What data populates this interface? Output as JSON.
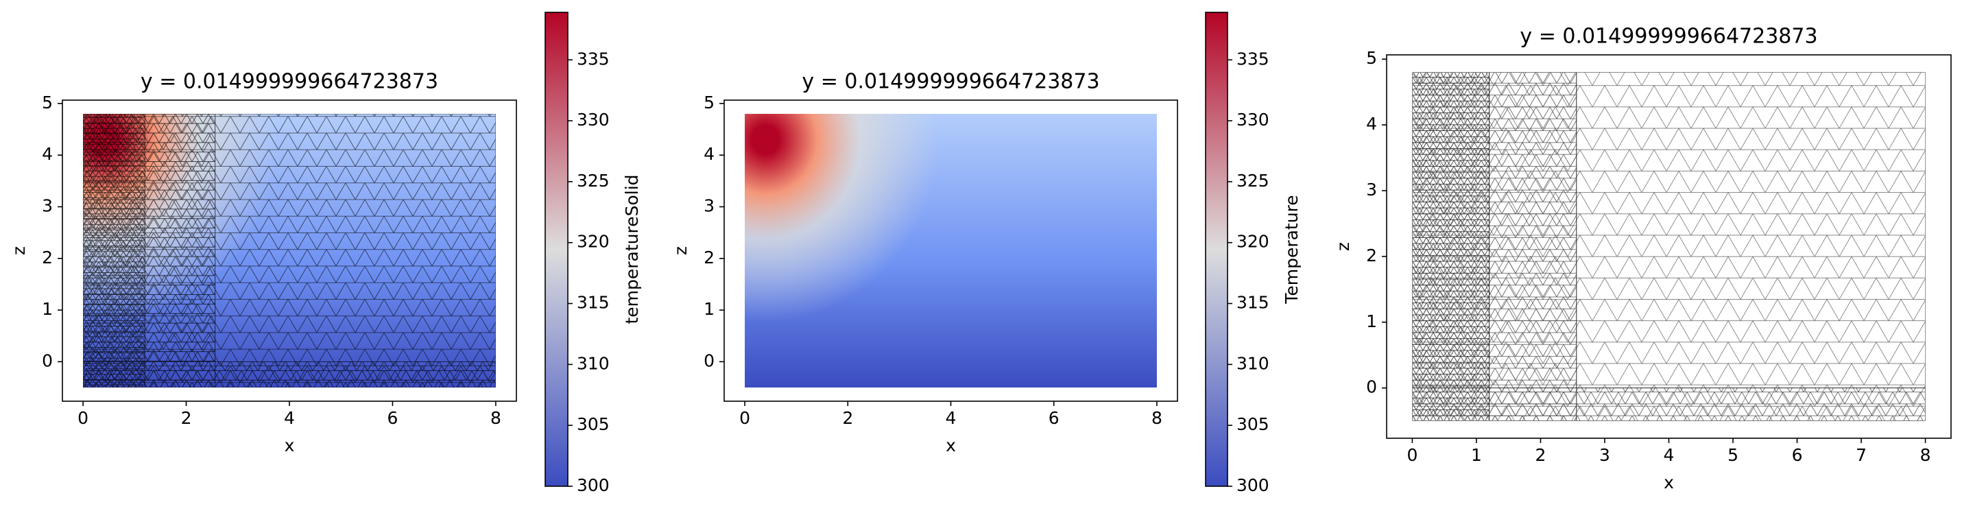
{
  "chart_data": [
    {
      "type": "tripcolor",
      "title": "y = 0.014999999664723873",
      "xlabel": "x",
      "ylabel": "z",
      "xlim": [
        -0.4,
        8.4
      ],
      "ylim": [
        -0.765,
        5.065
      ],
      "xticks": [
        0,
        2,
        4,
        6,
        8
      ],
      "yticks": [
        0,
        1,
        2,
        3,
        4,
        5
      ],
      "x_extent": [
        0,
        8
      ],
      "z_extent": [
        -0.5,
        4.8
      ],
      "mesh": true,
      "colormap": [
        "#3b4cc0",
        "#dddddd",
        "#b40426"
      ],
      "colorbar": {
        "label": "temperatureSolid",
        "clim": [
          300,
          338.9
        ],
        "ticks": [
          300,
          305,
          310,
          315,
          320,
          325,
          330,
          335
        ]
      }
    },
    {
      "type": "tripcolor",
      "title": "y = 0.014999999664723873",
      "xlabel": "x",
      "ylabel": "z",
      "xlim": [
        -0.4,
        8.4
      ],
      "ylim": [
        -0.765,
        5.065
      ],
      "xticks": [
        0,
        2,
        4,
        6,
        8
      ],
      "yticks": [
        0,
        1,
        2,
        3,
        4,
        5
      ],
      "x_extent": [
        0,
        8
      ],
      "z_extent": [
        -0.5,
        4.8
      ],
      "mesh": false,
      "colormap": [
        "#3b4cc0",
        "#dddddd",
        "#b40426"
      ],
      "colorbar": {
        "label": "Temperature",
        "clim": [
          300,
          338.9
        ],
        "ticks": [
          300,
          305,
          310,
          315,
          320,
          325,
          330,
          335
        ]
      }
    },
    {
      "type": "triplot",
      "title": "y = 0.014999999664723873",
      "xlabel": "x",
      "ylabel": "z",
      "xlim": [
        -0.4,
        8.4
      ],
      "ylim": [
        -0.765,
        5.065
      ],
      "xticks": [
        0,
        1,
        2,
        3,
        4,
        5,
        6,
        7,
        8
      ],
      "yticks": [
        0,
        1,
        2,
        3,
        4,
        5
      ],
      "x_extent": [
        0,
        8
      ],
      "z_extent": [
        -0.5,
        4.8
      ],
      "mesh": true,
      "color": "#000000"
    }
  ]
}
